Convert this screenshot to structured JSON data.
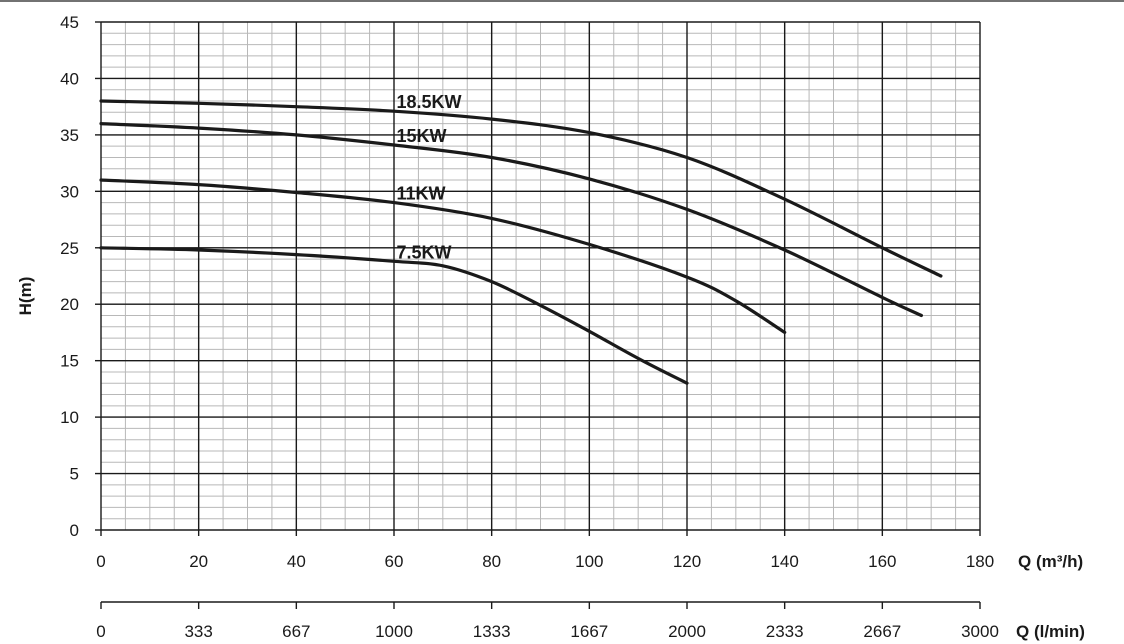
{
  "chart_data": {
    "type": "line",
    "xlabel": "Q (m³/h)",
    "xlabel_secondary": "Q (l/min)",
    "ylabel": "H(m)",
    "xlim": [
      0,
      180
    ],
    "ylim": [
      0,
      45
    ],
    "x_ticks": [
      "0",
      "20",
      "40",
      "60",
      "80",
      "100",
      "120",
      "140",
      "160",
      "180"
    ],
    "x_ticks_secondary": [
      "0",
      "333",
      "667",
      "1000",
      "1333",
      "1667",
      "2000",
      "2333",
      "2667",
      "3000"
    ],
    "y_ticks": [
      "0",
      "5",
      "10",
      "15",
      "20",
      "25",
      "30",
      "35",
      "40",
      "45"
    ],
    "grid": true,
    "series": [
      {
        "name": "18.5KW",
        "x": [
          0,
          20,
          40,
          60,
          80,
          100,
          120,
          140,
          160,
          172
        ],
        "y": [
          38,
          37.8,
          37.5,
          37.1,
          36.4,
          35.2,
          33,
          29.3,
          25,
          22.5
        ]
      },
      {
        "name": "15KW",
        "x": [
          0,
          20,
          40,
          60,
          80,
          100,
          120,
          140,
          160,
          168
        ],
        "y": [
          36,
          35.6,
          35,
          34.1,
          33,
          31.1,
          28.4,
          24.8,
          20.6,
          19
        ]
      },
      {
        "name": "11KW",
        "x": [
          0,
          20,
          40,
          60,
          80,
          100,
          120,
          130,
          140
        ],
        "y": [
          31,
          30.6,
          29.9,
          29,
          27.6,
          25.3,
          22.4,
          20.3,
          17.5
        ]
      },
      {
        "name": "7.5KW",
        "x": [
          0,
          20,
          40,
          60,
          70,
          80,
          90,
          100,
          110,
          120
        ],
        "y": [
          25,
          24.8,
          24.4,
          23.8,
          23.4,
          22,
          19.9,
          17.6,
          15.2,
          13
        ]
      }
    ]
  }
}
